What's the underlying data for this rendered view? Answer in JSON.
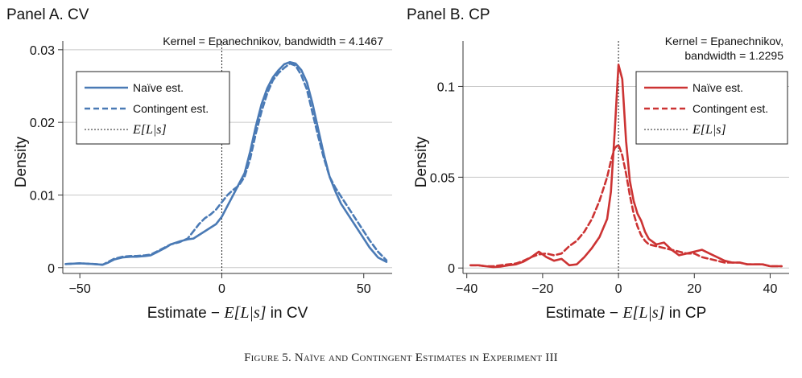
{
  "caption": "Figure 5. Naïve and Contingent Estimates in Experiment III",
  "chart_data": [
    {
      "type": "line",
      "panel_title": "Panel A. CV",
      "annotation": [
        "Kernel = Epanechnikov, bandwidth = 4.1467"
      ],
      "xlabel_prefix": "Estimate − ",
      "xlabel_math": "E[L|s]",
      "xlabel_suffix": " in CV",
      "ylabel": "Density",
      "xlim": [
        -56,
        60
      ],
      "ylim": [
        -0.0008,
        0.0312
      ],
      "xticks": [
        -50,
        0,
        50
      ],
      "xtick_labels": [
        "−50",
        "0",
        "50"
      ],
      "yticks": [
        0,
        0.01,
        0.02,
        0.03
      ],
      "ytick_labels": [
        "0",
        "0.01",
        "0.02",
        "0.03"
      ],
      "grid": true,
      "legend_position": "top-left",
      "vline_x": 0,
      "series": [
        {
          "name": "Naïve est.",
          "style": "solid",
          "color": "#4a7ab5",
          "x": [
            -55,
            -50,
            -45,
            -42,
            -40,
            -38,
            -35,
            -32,
            -30,
            -27,
            -25,
            -23,
            -20,
            -18,
            -15,
            -12,
            -10,
            -8,
            -6,
            -4,
            -2,
            0,
            2,
            4,
            6,
            8,
            10,
            12,
            14,
            16,
            18,
            20,
            22,
            24,
            26,
            28,
            30,
            32,
            34,
            36,
            38,
            40,
            42,
            45,
            48,
            50,
            52,
            55,
            58
          ],
          "y": [
            0.0005,
            0.0006,
            0.0005,
            0.0004,
            0.0007,
            0.0011,
            0.0014,
            0.0015,
            0.0015,
            0.0016,
            0.0017,
            0.0021,
            0.0027,
            0.0032,
            0.0036,
            0.0039,
            0.004,
            0.0045,
            0.005,
            0.0055,
            0.006,
            0.007,
            0.0085,
            0.01,
            0.0115,
            0.013,
            0.016,
            0.0195,
            0.0225,
            0.0247,
            0.0262,
            0.0272,
            0.028,
            0.0283,
            0.0281,
            0.0272,
            0.0255,
            0.0225,
            0.019,
            0.0155,
            0.0125,
            0.0105,
            0.0088,
            0.007,
            0.0052,
            0.004,
            0.0028,
            0.0014,
            0.0008
          ]
        },
        {
          "name": "Contingent est.",
          "style": "dashed",
          "color": "#4a7ab5",
          "x": [
            -55,
            -50,
            -45,
            -42,
            -40,
            -38,
            -35,
            -32,
            -30,
            -27,
            -25,
            -23,
            -20,
            -18,
            -15,
            -12,
            -10,
            -8,
            -6,
            -4,
            -2,
            0,
            2,
            4,
            6,
            8,
            10,
            12,
            14,
            16,
            18,
            20,
            22,
            24,
            26,
            28,
            30,
            32,
            34,
            36,
            38,
            40,
            42,
            45,
            48,
            50,
            52,
            55,
            58
          ],
          "y": [
            0.0005,
            0.0006,
            0.0005,
            0.0004,
            0.0008,
            0.0012,
            0.0015,
            0.0016,
            0.0016,
            0.0017,
            0.0018,
            0.0022,
            0.0028,
            0.0032,
            0.0035,
            0.004,
            0.005,
            0.006,
            0.0068,
            0.0073,
            0.008,
            0.009,
            0.01,
            0.0107,
            0.0113,
            0.0125,
            0.015,
            0.0185,
            0.0215,
            0.024,
            0.0258,
            0.0268,
            0.0275,
            0.0281,
            0.0278,
            0.0265,
            0.0245,
            0.0212,
            0.018,
            0.015,
            0.0125,
            0.011,
            0.0098,
            0.008,
            0.0062,
            0.005,
            0.0038,
            0.0022,
            0.001
          ]
        }
      ],
      "vline_label": "E[L|s]"
    },
    {
      "type": "line",
      "panel_title": "Panel B. CP",
      "annotation": [
        "Kernel = Epanechnikov,",
        "bandwidth = 1.2295"
      ],
      "xlabel_prefix": "Estimate − ",
      "xlabel_math": "E[L|s]",
      "xlabel_suffix": " in CP",
      "ylabel": "Density",
      "xlim": [
        -41,
        45
      ],
      "ylim": [
        -0.003,
        0.125
      ],
      "xticks": [
        -40,
        -20,
        0,
        20,
        40
      ],
      "xtick_labels": [
        "−40",
        "−20",
        "0",
        "20",
        "40"
      ],
      "yticks": [
        0,
        0.05,
        0.1
      ],
      "ytick_labels": [
        "0",
        "0.05",
        "0.1"
      ],
      "grid": true,
      "legend_position": "top-right",
      "vline_x": 0,
      "series": [
        {
          "name": "Naïve est.",
          "style": "solid",
          "color": "#cc3333",
          "x": [
            -39,
            -37,
            -35,
            -33,
            -31,
            -29,
            -27,
            -25,
            -23,
            -21,
            -19,
            -17,
            -15,
            -13,
            -11,
            -9,
            -7,
            -5,
            -3,
            -2,
            -1,
            0,
            1,
            2,
            3,
            4,
            5,
            6,
            7,
            8,
            10,
            12,
            14,
            16,
            18,
            20,
            22,
            24,
            26,
            28,
            30,
            32,
            34,
            36,
            38,
            40,
            42,
            43
          ],
          "y": [
            0.0015,
            0.0015,
            0.001,
            0.0005,
            0.0008,
            0.0015,
            0.002,
            0.0035,
            0.006,
            0.009,
            0.006,
            0.004,
            0.005,
            0.0015,
            0.002,
            0.006,
            0.011,
            0.017,
            0.027,
            0.042,
            0.075,
            0.112,
            0.104,
            0.07,
            0.048,
            0.037,
            0.03,
            0.026,
            0.02,
            0.016,
            0.013,
            0.014,
            0.01,
            0.007,
            0.008,
            0.009,
            0.01,
            0.008,
            0.006,
            0.004,
            0.003,
            0.003,
            0.002,
            0.002,
            0.002,
            0.001,
            0.001,
            0.001
          ]
        },
        {
          "name": "Contingent est.",
          "style": "dashed",
          "color": "#cc3333",
          "x": [
            -39,
            -37,
            -35,
            -33,
            -31,
            -29,
            -27,
            -25,
            -23,
            -21,
            -19,
            -17,
            -15,
            -13,
            -11,
            -9,
            -7,
            -5,
            -3,
            -2,
            -1,
            0,
            1,
            2,
            3,
            4,
            5,
            6,
            7,
            8,
            10,
            12,
            14,
            16,
            18,
            20,
            22,
            24,
            26,
            28,
            30,
            32,
            34,
            36,
            38,
            40,
            42,
            43
          ],
          "y": [
            0.0015,
            0.0015,
            0.001,
            0.001,
            0.0015,
            0.002,
            0.0025,
            0.004,
            0.006,
            0.0075,
            0.008,
            0.007,
            0.008,
            0.012,
            0.015,
            0.02,
            0.027,
            0.037,
            0.05,
            0.059,
            0.066,
            0.068,
            0.062,
            0.052,
            0.04,
            0.03,
            0.023,
            0.018,
            0.015,
            0.013,
            0.012,
            0.011,
            0.01,
            0.009,
            0.008,
            0.008,
            0.006,
            0.005,
            0.004,
            0.003,
            0.003,
            0.003,
            0.002,
            0.002,
            0.002,
            0.001,
            0.001,
            0.001
          ]
        }
      ],
      "vline_label": "E[L|s]"
    }
  ]
}
